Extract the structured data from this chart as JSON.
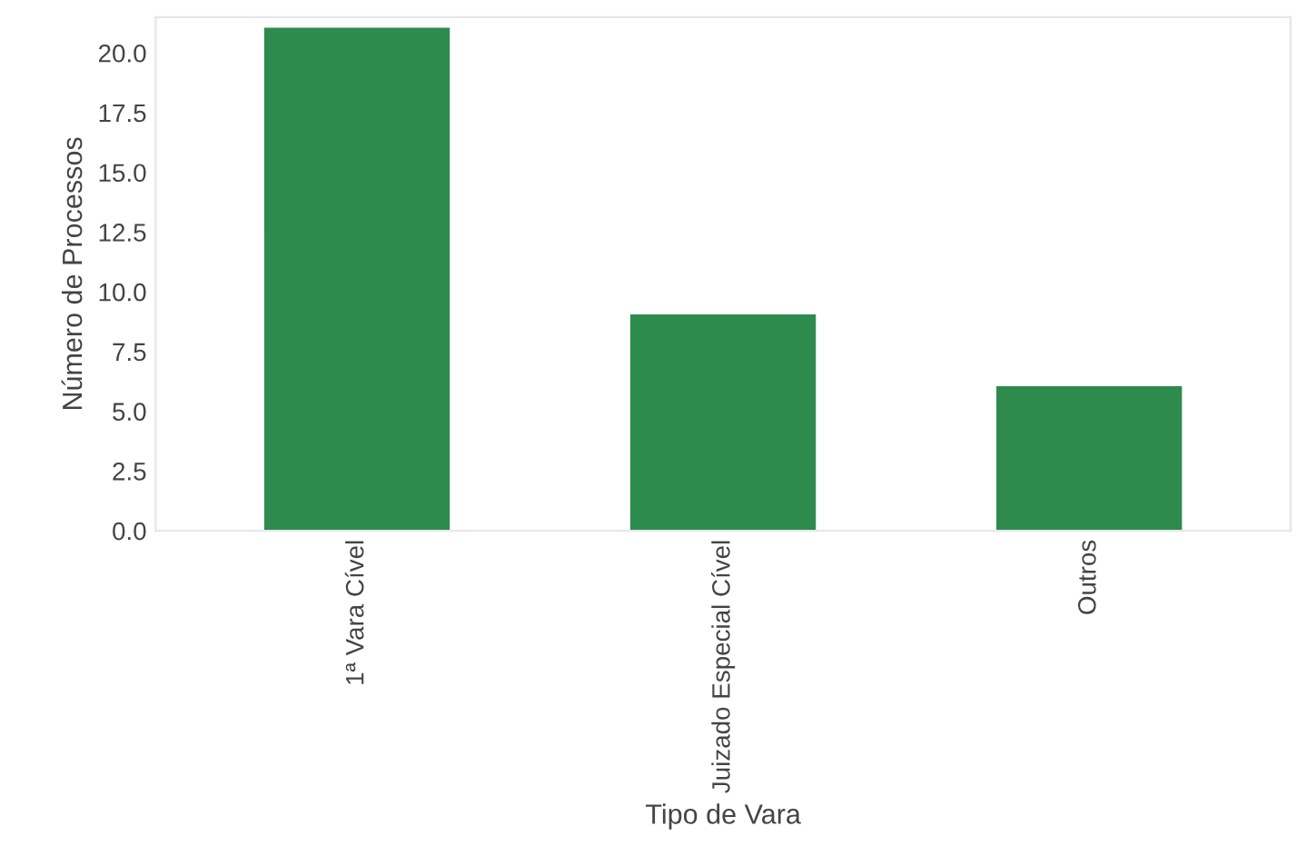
{
  "chart_data": {
    "type": "bar",
    "xlabel": "Tipo de Vara",
    "ylabel": "Número de Processos",
    "categories": [
      "1ª Vara Cível",
      "Juizado Especial Cível",
      "Outros"
    ],
    "values": [
      21,
      9,
      6
    ],
    "color": "#2e8b4e",
    "ylim": [
      0,
      21.5
    ],
    "yticks": [
      {
        "value": 0,
        "label": "0.0"
      },
      {
        "value": 2.5,
        "label": "2.5"
      },
      {
        "value": 5,
        "label": "5.0"
      },
      {
        "value": 7.5,
        "label": "7.5"
      },
      {
        "value": 10,
        "label": "10.0"
      },
      {
        "value": 12.5,
        "label": "12.5"
      },
      {
        "value": 15,
        "label": "15.0"
      },
      {
        "value": 17.5,
        "label": "17.5"
      },
      {
        "value": 20,
        "label": "20.0"
      }
    ],
    "grid": false,
    "legend": false
  }
}
